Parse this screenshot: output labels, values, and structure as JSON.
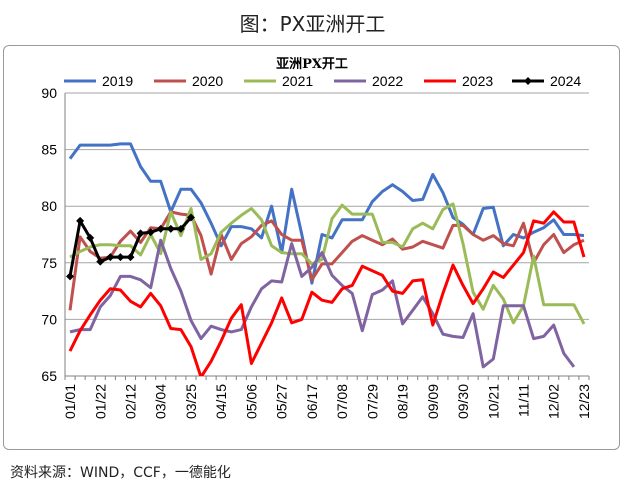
{
  "figure_title": "图：PX亚洲开工",
  "source_note": "资料来源：WIND，CCF，一德能化",
  "colors": {
    "2019": "#4472C4",
    "2020": "#C0504D",
    "2021": "#9BBB59",
    "2022": "#8064A2",
    "2023": "#FF0000",
    "2024": "#000000"
  },
  "chart_data": {
    "type": "line",
    "title": "亚洲PX开工",
    "xlabel": "",
    "ylabel": "",
    "ylim": [
      65,
      90
    ],
    "yticks": [
      65,
      70,
      75,
      80,
      85,
      90
    ],
    "x_tick_labels": [
      "01/01",
      "01/22",
      "02/12",
      "03/04",
      "03/25",
      "04/15",
      "05/06",
      "05/27",
      "06/17",
      "07/08",
      "07/29",
      "08/19",
      "09/09",
      "09/30",
      "10/21",
      "11/11",
      "12/02",
      "12/23"
    ],
    "x_count": 52,
    "grid": true,
    "legend_position": "top",
    "series": [
      {
        "name": "2019",
        "color": "#4472C4",
        "values": [
          84.2,
          85.4,
          85.4,
          85.4,
          85.4,
          85.5,
          85.5,
          83.5,
          82.2,
          82.2,
          79.5,
          81.5,
          81.5,
          80.3,
          78.5,
          76.5,
          78.2,
          78.2,
          78.0,
          77.2,
          80.0,
          75.9,
          81.5,
          77.5,
          73.2,
          77.5,
          77.2,
          78.8,
          78.8,
          78.8,
          80.4,
          81.3,
          81.9,
          81.3,
          80.5,
          80.6,
          82.8,
          81.2,
          79.0,
          78.4,
          77.5,
          79.8,
          79.9,
          76.5,
          77.5,
          77.2,
          77.7,
          78.1,
          78.8,
          77.5,
          77.5,
          77.4
        ]
      },
      {
        "name": "2020",
        "color": "#C0504D",
        "values": [
          70.8,
          77.3,
          76.0,
          75.4,
          75.5,
          76.9,
          77.8,
          76.8,
          78.1,
          78.0,
          79.5,
          79.3,
          79.2,
          77.4,
          74.0,
          77.5,
          75.3,
          76.7,
          77.3,
          78.3,
          78.7,
          77.5,
          77.0,
          77.0,
          73.5,
          74.9,
          74.9,
          75.9,
          76.9,
          77.4,
          77.0,
          76.6,
          77.1,
          76.2,
          76.4,
          76.9,
          76.6,
          76.3,
          78.3,
          78.3,
          77.5,
          77.0,
          77.4,
          76.7,
          76.5,
          78.5,
          75.0,
          76.6,
          77.5,
          75.9,
          76.6,
          77.0
        ]
      },
      {
        "name": "2021",
        "color": "#9BBB59",
        "values": [
          75.5,
          76.0,
          76.4,
          76.6,
          76.6,
          76.5,
          76.5,
          75.7,
          77.5,
          75.8,
          79.5,
          77.4,
          79.8,
          75.3,
          75.8,
          77.7,
          78.5,
          79.2,
          79.8,
          78.8,
          76.5,
          75.9,
          75.8,
          75.8,
          74.9,
          75.3,
          78.9,
          80.1,
          79.3,
          79.3,
          79.3,
          76.8,
          76.8,
          76.4,
          78.0,
          78.5,
          78.0,
          79.7,
          80.2,
          76.7,
          72.4,
          70.9,
          73.0,
          71.8,
          69.7,
          71.2,
          75.6,
          71.3,
          71.3,
          71.3,
          71.3,
          69.6
        ]
      },
      {
        "name": "2022",
        "color": "#8064A2",
        "values": [
          68.9,
          69.1,
          69.1,
          71.1,
          72.1,
          73.8,
          73.8,
          73.5,
          72.8,
          77.0,
          74.5,
          72.5,
          69.9,
          68.3,
          69.4,
          69.1,
          68.9,
          69.1,
          71.1,
          72.7,
          73.4,
          73.3,
          76.7,
          73.8,
          74.6,
          75.9,
          73.9,
          73.0,
          72.3,
          69.0,
          72.2,
          72.6,
          73.4,
          69.6,
          70.8,
          72.0,
          70.5,
          68.7,
          68.5,
          68.4,
          70.5,
          65.8,
          66.5,
          71.2,
          71.2,
          71.2,
          68.3,
          68.5,
          69.5,
          67.0,
          65.8
        ]
      },
      {
        "name": "2023",
        "color": "#FF0000",
        "values": [
          67.2,
          69.0,
          70.4,
          71.7,
          72.7,
          72.6,
          71.6,
          71.1,
          72.3,
          71.2,
          69.2,
          69.1,
          67.6,
          64.9,
          66.3,
          68.1,
          70.1,
          71.3,
          66.1,
          67.9,
          69.7,
          71.9,
          69.7,
          70.0,
          72.4,
          71.7,
          71.5,
          72.7,
          73.0,
          74.7,
          74.3,
          73.9,
          72.5,
          72.3,
          73.4,
          73.5,
          69.5,
          72.3,
          74.8,
          73.0,
          71.4,
          72.7,
          74.2,
          73.7,
          74.8,
          75.9,
          78.7,
          78.5,
          79.5,
          78.6,
          78.6,
          75.5
        ]
      },
      {
        "name": "2024",
        "color": "#000000",
        "values": [
          73.8,
          78.7,
          77.2,
          75.1,
          75.5,
          75.5,
          75.5,
          77.6,
          77.7,
          78.0,
          78.0,
          78.0,
          79.0
        ]
      }
    ]
  }
}
